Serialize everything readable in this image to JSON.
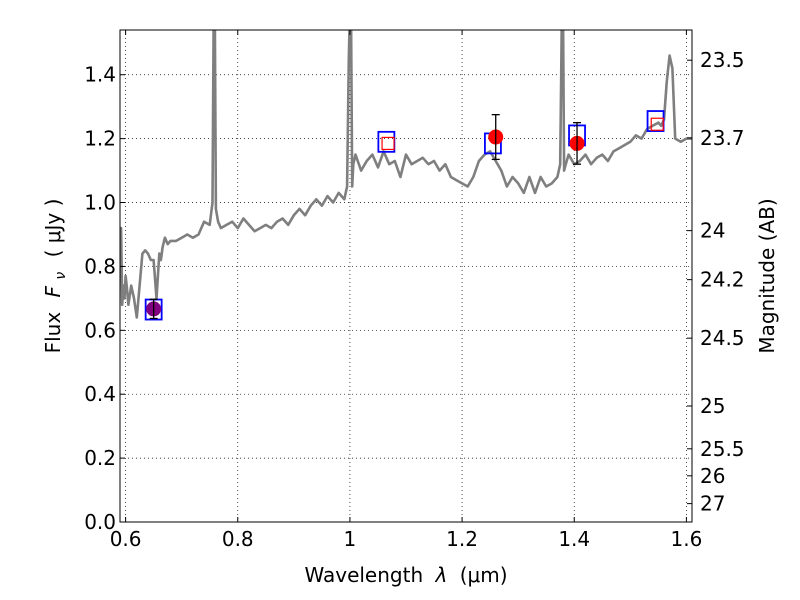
{
  "chart_data": {
    "type": "line",
    "xlabel_text": "Wavelength",
    "xlabel_symbol": "λ",
    "xlabel_unit": "(μm)",
    "ylabel_text": "Flux",
    "ylabel_symbol": "F",
    "ylabel_sub": "ν",
    "ylabel_unit": "( μJy )",
    "y2label": "Magnitude (AB)",
    "xlim": [
      0.59,
      1.61
    ],
    "ylim": [
      0.0,
      1.54
    ],
    "grid": true,
    "x_ticks": [
      {
        "value": 0.6,
        "label": "0.6"
      },
      {
        "value": 0.8,
        "label": "0.8"
      },
      {
        "value": 1.0,
        "label": "1"
      },
      {
        "value": 1.2,
        "label": "1.2"
      },
      {
        "value": 1.4,
        "label": "1.4"
      },
      {
        "value": 1.6,
        "label": "1.6"
      }
    ],
    "y_ticks": [
      {
        "value": 0.0,
        "label": "0.0"
      },
      {
        "value": 0.2,
        "label": "0.2"
      },
      {
        "value": 0.4,
        "label": "0.4"
      },
      {
        "value": 0.6,
        "label": "0.6"
      },
      {
        "value": 0.8,
        "label": "0.8"
      },
      {
        "value": 1.0,
        "label": "1.0"
      },
      {
        "value": 1.2,
        "label": "1.2"
      },
      {
        "value": 1.4,
        "label": "1.4"
      }
    ],
    "y2_ticks": [
      {
        "value": 23.5,
        "label": "23.5"
      },
      {
        "value": 23.7,
        "label": "23.7"
      },
      {
        "value": 24.0,
        "label": "24"
      },
      {
        "value": 24.2,
        "label": "24.2"
      },
      {
        "value": 24.5,
        "label": "24.5"
      },
      {
        "value": 25.0,
        "label": "25"
      },
      {
        "value": 25.5,
        "label": "25.5"
      },
      {
        "value": 26.0,
        "label": "26"
      },
      {
        "value": 27.0,
        "label": "27"
      }
    ],
    "spectrum_color": "#7f7f7f",
    "spectrum": {
      "x": [
        0.59,
        0.592,
        0.594,
        0.596,
        0.598,
        0.6,
        0.602,
        0.605,
        0.61,
        0.615,
        0.62,
        0.625,
        0.63,
        0.635,
        0.64,
        0.645,
        0.65,
        0.655,
        0.66,
        0.663,
        0.666,
        0.67,
        0.675,
        0.68,
        0.69,
        0.7,
        0.71,
        0.72,
        0.73,
        0.74,
        0.75,
        0.755,
        0.757,
        0.759,
        0.761,
        0.763,
        0.765,
        0.77,
        0.78,
        0.79,
        0.8,
        0.81,
        0.82,
        0.83,
        0.84,
        0.85,
        0.86,
        0.87,
        0.88,
        0.89,
        0.9,
        0.91,
        0.92,
        0.93,
        0.94,
        0.95,
        0.96,
        0.97,
        0.98,
        0.99,
        0.995,
        0.998,
        1.0,
        1.002,
        1.004,
        1.006,
        1.01,
        1.02,
        1.03,
        1.04,
        1.05,
        1.06,
        1.07,
        1.08,
        1.09,
        1.1,
        1.11,
        1.12,
        1.13,
        1.14,
        1.15,
        1.16,
        1.17,
        1.18,
        1.19,
        1.2,
        1.21,
        1.22,
        1.23,
        1.24,
        1.25,
        1.26,
        1.27,
        1.28,
        1.29,
        1.3,
        1.31,
        1.32,
        1.33,
        1.34,
        1.35,
        1.36,
        1.37,
        1.375,
        1.378,
        1.38,
        1.382,
        1.385,
        1.39,
        1.4,
        1.41,
        1.42,
        1.43,
        1.44,
        1.45,
        1.46,
        1.47,
        1.48,
        1.49,
        1.5,
        1.51,
        1.52,
        1.53,
        1.54,
        1.55,
        1.555,
        1.56,
        1.565,
        1.57,
        1.575,
        1.58,
        1.59,
        1.6,
        1.61
      ],
      "y": [
        0.78,
        0.92,
        0.68,
        0.74,
        0.7,
        0.77,
        0.74,
        0.68,
        0.74,
        0.7,
        0.64,
        0.74,
        0.84,
        0.85,
        0.84,
        0.82,
        0.82,
        0.7,
        0.84,
        0.82,
        0.86,
        0.89,
        0.87,
        0.88,
        0.88,
        0.89,
        0.9,
        0.89,
        0.9,
        0.94,
        0.93,
        1.0,
        1.6,
        1.6,
        0.98,
        0.96,
        0.94,
        0.92,
        0.93,
        0.94,
        0.92,
        0.95,
        0.93,
        0.91,
        0.92,
        0.93,
        0.92,
        0.94,
        0.95,
        0.93,
        0.96,
        0.98,
        0.96,
        0.99,
        1.01,
        0.99,
        1.02,
        1.0,
        1.03,
        1.01,
        1.05,
        1.45,
        1.6,
        1.6,
        1.05,
        1.12,
        1.15,
        1.1,
        1.13,
        1.15,
        1.11,
        1.16,
        1.12,
        1.13,
        1.08,
        1.15,
        1.12,
        1.13,
        1.14,
        1.12,
        1.13,
        1.1,
        1.12,
        1.08,
        1.07,
        1.06,
        1.05,
        1.08,
        1.13,
        1.15,
        1.16,
        1.13,
        1.1,
        1.05,
        1.08,
        1.06,
        1.03,
        1.08,
        1.03,
        1.08,
        1.05,
        1.06,
        1.08,
        1.12,
        1.6,
        1.6,
        1.1,
        1.12,
        1.15,
        1.12,
        1.13,
        1.15,
        1.12,
        1.14,
        1.15,
        1.13,
        1.16,
        1.17,
        1.18,
        1.19,
        1.21,
        1.2,
        1.23,
        1.24,
        1.25,
        1.24,
        1.26,
        1.38,
        1.46,
        1.42,
        1.2,
        1.19,
        1.2,
        1.2
      ]
    },
    "points": [
      {
        "x": 0.65,
        "y": 0.667,
        "yerr": 0.03,
        "color": "#800080"
      },
      {
        "x": 1.26,
        "y": 1.205,
        "yerr": 0.07,
        "color": "#ff0000"
      },
      {
        "x": 1.405,
        "y": 1.185,
        "yerr": 0.065,
        "color": "#ff0000"
      }
    ],
    "blue_squares": [
      {
        "x": 0.65,
        "y": 0.665
      },
      {
        "x": 1.065,
        "y": 1.19
      },
      {
        "x": 1.255,
        "y": 1.185
      },
      {
        "x": 1.405,
        "y": 1.21
      },
      {
        "x": 1.545,
        "y": 1.255
      }
    ],
    "red_squares": [
      {
        "x": 1.068,
        "y": 1.185
      },
      {
        "x": 1.548,
        "y": 1.245
      }
    ]
  }
}
